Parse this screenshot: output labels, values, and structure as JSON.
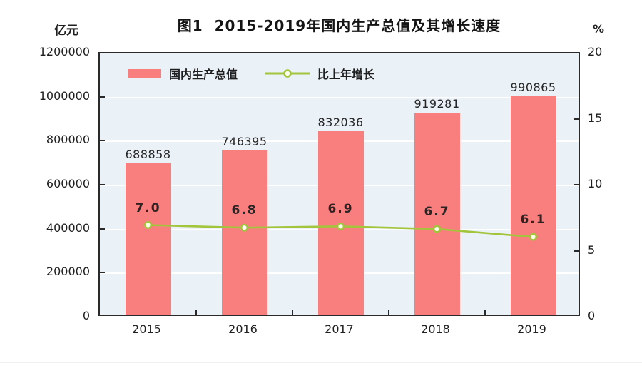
{
  "title": "图1  2015-2019年国内生产总值及其增长速度",
  "left_axis": {
    "unit": "亿元",
    "ticks": [
      "1200000",
      "1000000",
      "800000",
      "600000",
      "400000",
      "200000",
      "0"
    ]
  },
  "right_axis": {
    "unit": "%",
    "ticks": [
      "20",
      "15",
      "10",
      "5",
      "0"
    ]
  },
  "legend": [
    {
      "label": "国内生产总值",
      "type": "bar"
    },
    {
      "label": "比上年增长",
      "type": "line"
    }
  ],
  "colors": {
    "bar": "#f97f7f",
    "line": "#a3c53c",
    "marker_fill": "#fdfdf0",
    "plot_bg": "#eaf1f7",
    "grid": "#ffffff",
    "axis": "#2a2a2a"
  },
  "chart_data": {
    "type": "bar",
    "categories": [
      "2015",
      "2016",
      "2017",
      "2018",
      "2019"
    ],
    "series": [
      {
        "name": "国内生产总值",
        "type": "bar",
        "axis": "left",
        "values": [
          688858,
          746395,
          832036,
          919281,
          990865
        ],
        "labels": [
          "688858",
          "746395",
          "832036",
          "919281",
          "990865"
        ]
      },
      {
        "name": "比上年增长",
        "type": "line",
        "axis": "right",
        "values": [
          7.0,
          6.8,
          6.9,
          6.7,
          6.1
        ],
        "labels": [
          "7.0",
          "6.8",
          "6.9",
          "6.7",
          "6.1"
        ]
      }
    ],
    "title": "图1 2015-2019年国内生产总值及其增长速度",
    "left_ylabel": "亿元",
    "right_ylabel": "%",
    "left_ylim": [
      0,
      1200000
    ],
    "left_step": 200000,
    "right_ylim": [
      0,
      20
    ],
    "right_step": 5,
    "grid": true,
    "legend_position": "top-inside"
  }
}
